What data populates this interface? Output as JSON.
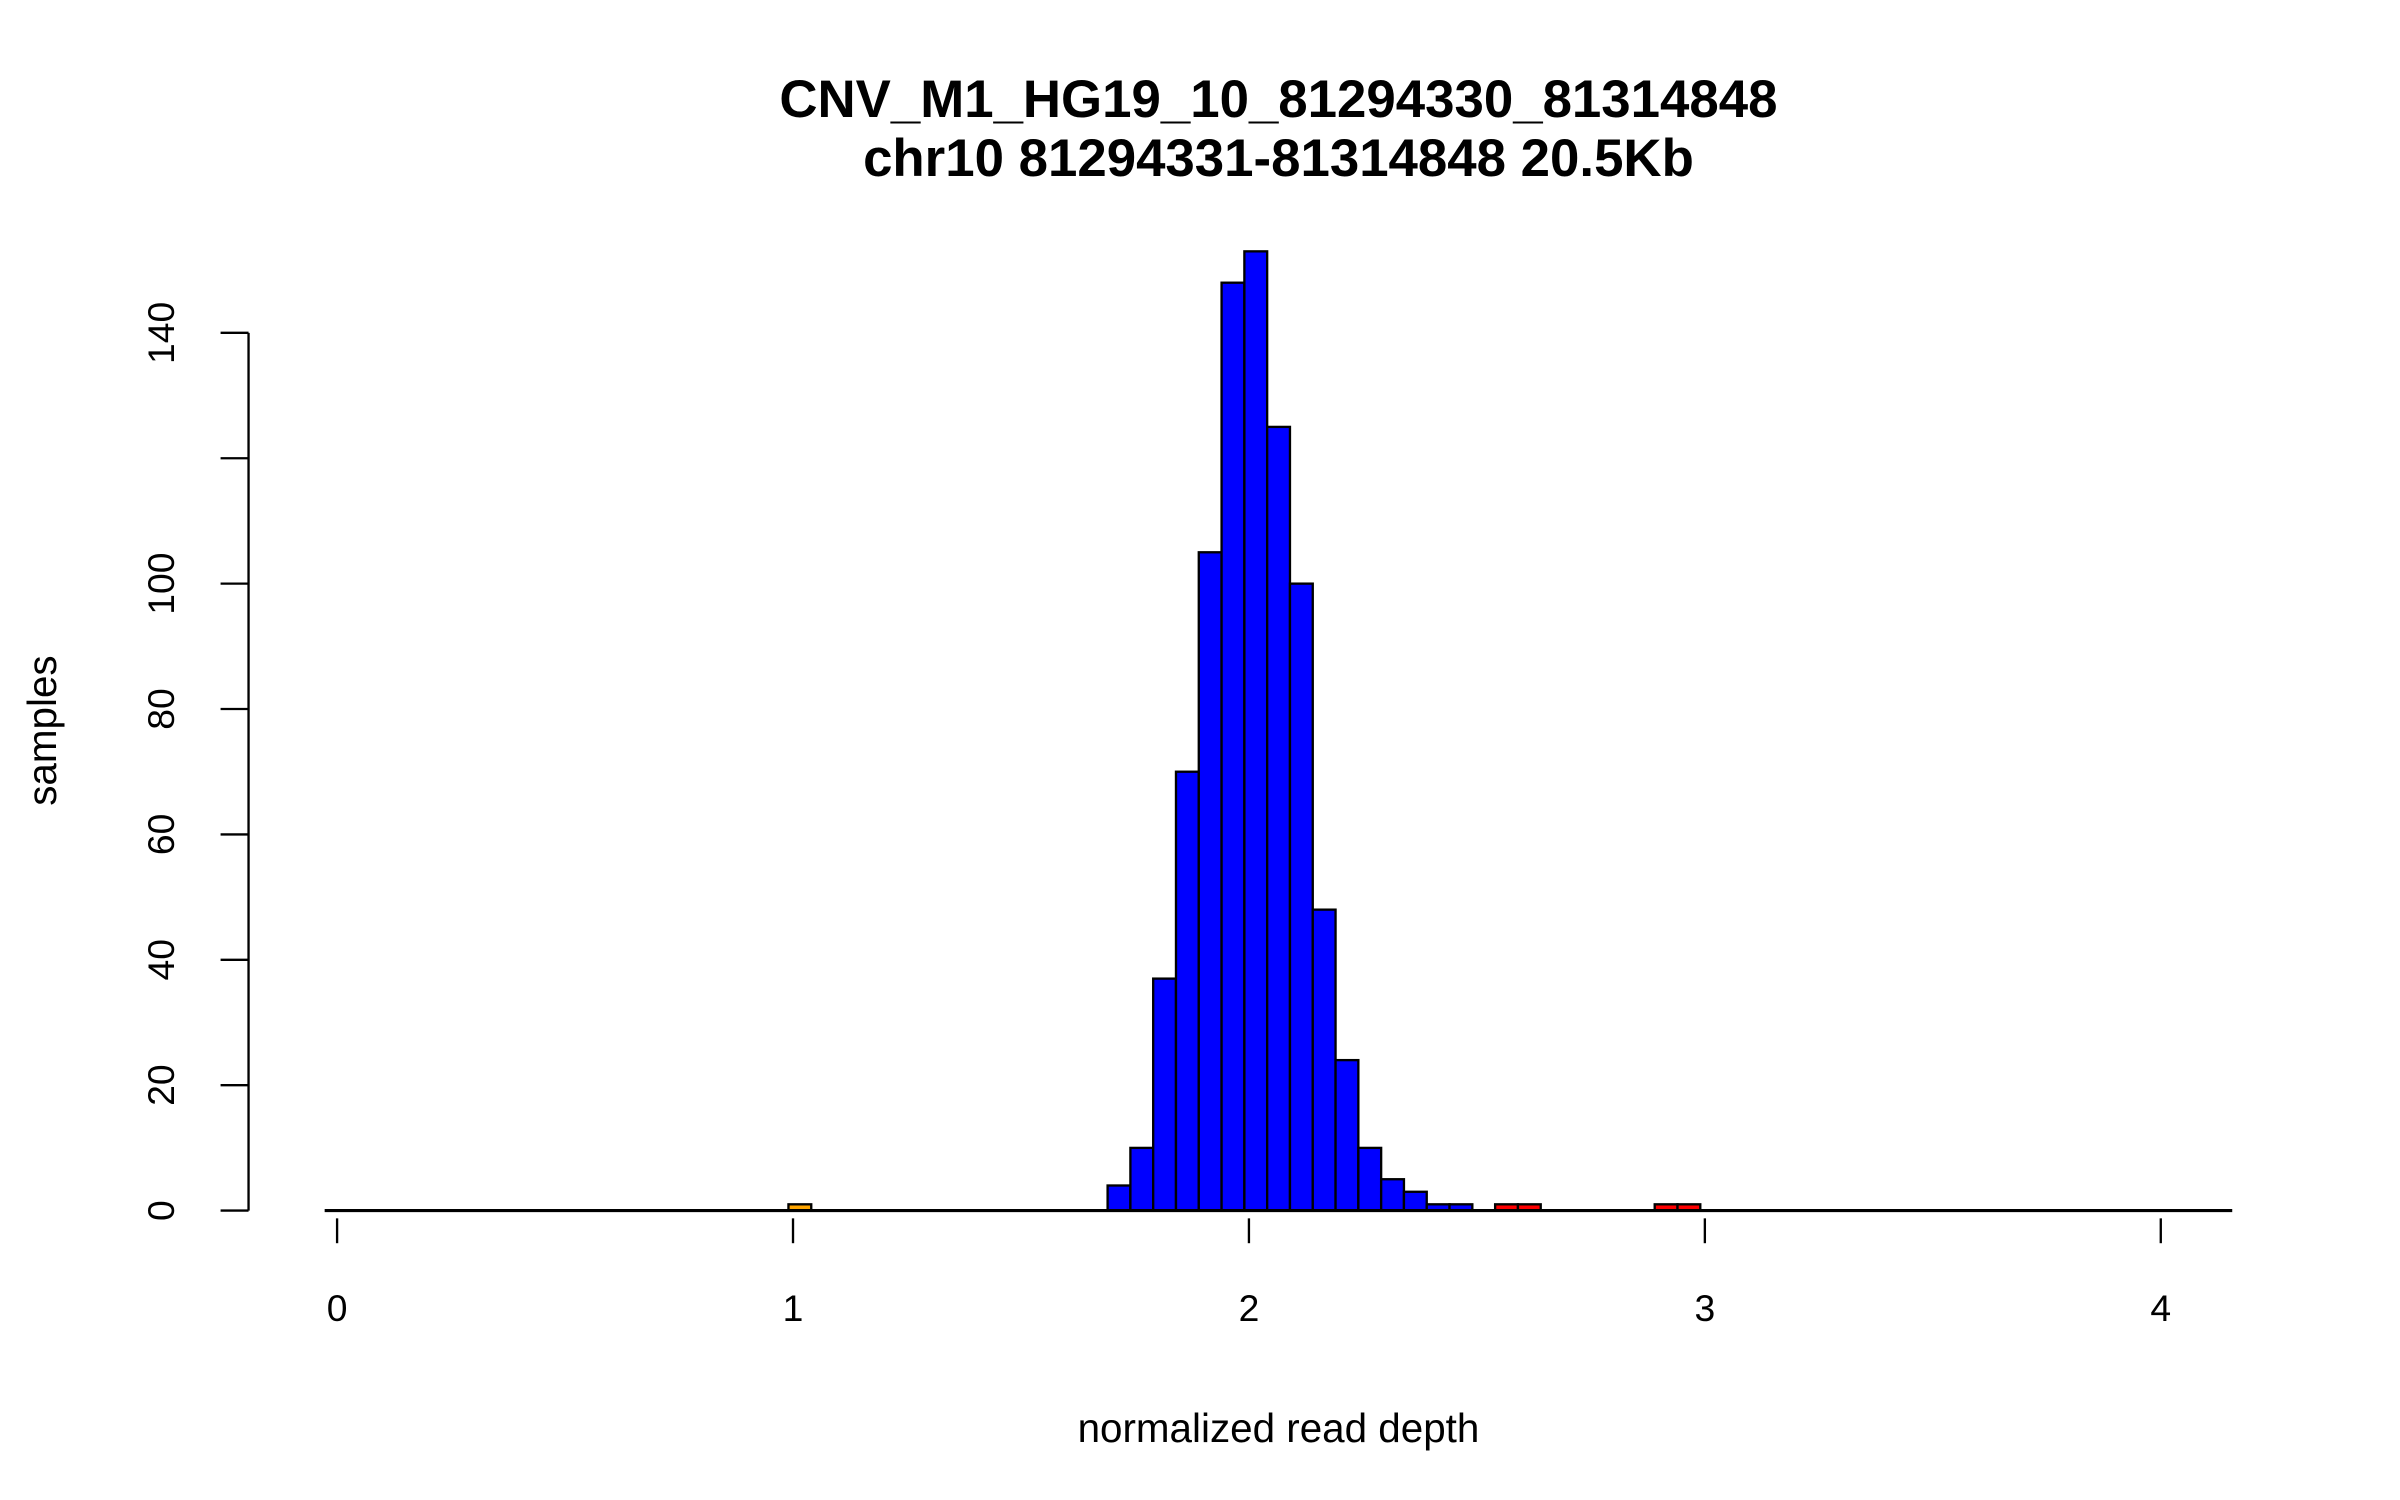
{
  "chart_data": {
    "type": "bar",
    "title": "CNV_M1_HG19_10_81294330_81314848",
    "subtitle": "chr10 81294331-81314848 20.5Kb",
    "xlabel": "normalized read depth",
    "ylabel": "samples",
    "xlim": [
      0,
      4.15
    ],
    "ylim": [
      0,
      153
    ],
    "xticks": [
      0,
      1,
      2,
      3,
      4
    ],
    "yticks": [
      0,
      20,
      40,
      60,
      80,
      100,
      120,
      140
    ],
    "ytick_labels": [
      "0",
      "20",
      "40",
      "60",
      "80",
      "100",
      "",
      "140"
    ],
    "bin_width": 0.05,
    "bins": [
      {
        "start": 0.99,
        "count": 1,
        "color": "#FFA500"
      },
      {
        "start": 1.69,
        "count": 4,
        "color": "#0000FF"
      },
      {
        "start": 1.74,
        "count": 10,
        "color": "#0000FF"
      },
      {
        "start": 1.79,
        "count": 37,
        "color": "#0000FF"
      },
      {
        "start": 1.84,
        "count": 70,
        "color": "#0000FF"
      },
      {
        "start": 1.89,
        "count": 105,
        "color": "#0000FF"
      },
      {
        "start": 1.94,
        "count": 148,
        "color": "#0000FF"
      },
      {
        "start": 1.99,
        "count": 153,
        "color": "#0000FF"
      },
      {
        "start": 2.04,
        "count": 125,
        "color": "#0000FF"
      },
      {
        "start": 2.09,
        "count": 100,
        "color": "#0000FF"
      },
      {
        "start": 2.14,
        "count": 48,
        "color": "#0000FF"
      },
      {
        "start": 2.19,
        "count": 24,
        "color": "#0000FF"
      },
      {
        "start": 2.24,
        "count": 10,
        "color": "#0000FF"
      },
      {
        "start": 2.29,
        "count": 5,
        "color": "#0000FF"
      },
      {
        "start": 2.34,
        "count": 3,
        "color": "#0000FF"
      },
      {
        "start": 2.39,
        "count": 1,
        "color": "#0000FF"
      },
      {
        "start": 2.44,
        "count": 1,
        "color": "#0000FF"
      },
      {
        "start": 2.54,
        "count": 1,
        "color": "#FF0000"
      },
      {
        "start": 2.59,
        "count": 1,
        "color": "#FF0000"
      },
      {
        "start": 2.89,
        "count": 1,
        "color": "#FF0000"
      },
      {
        "start": 2.94,
        "count": 1,
        "color": "#FF0000"
      }
    ]
  }
}
